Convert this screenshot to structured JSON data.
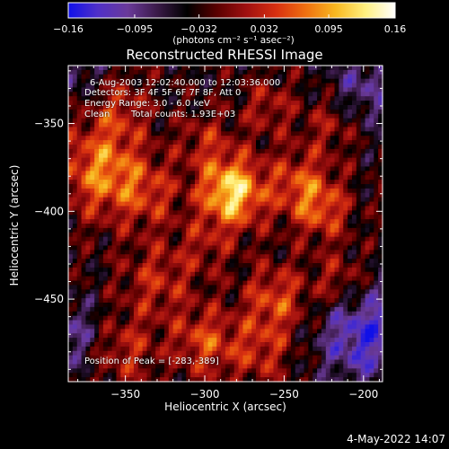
{
  "chart_data": {
    "type": "heatmap",
    "title": "Reconstructed RHESSI Image",
    "xlabel": "Heliocentric X (arcsec)",
    "ylabel": "Heliocentric Y (arcsec)",
    "xlim": [
      -386,
      -188
    ],
    "ylim": [
      -497,
      -317
    ],
    "xticks": [
      -350,
      -300,
      -250,
      -200
    ],
    "xtick_labels": [
      "−350",
      "−300",
      "−250",
      "−200"
    ],
    "yticks": [
      -350,
      -400,
      -450
    ],
    "ytick_labels": [
      "−350",
      "−400",
      "−450"
    ],
    "colorbar": {
      "range": [
        -0.16,
        0.16
      ],
      "ticks": [
        -0.16,
        -0.095,
        -0.032,
        0.032,
        0.095,
        0.16
      ],
      "tick_labels": [
        "−0.16",
        "−0.095",
        "−0.032",
        "0.032",
        "0.095",
        "0.16"
      ],
      "units_text": "(photons cm⁻² s⁻¹ asec⁻²)",
      "palette": [
        "#1010e8",
        "#5030c8",
        "#6a3a9a",
        "#3a1a48",
        "#000000",
        "#5a0000",
        "#a01010",
        "#d83010",
        "#f07010",
        "#f8b820",
        "#fff080",
        "#ffffff"
      ]
    },
    "annotations": {
      "time_range": "6-Aug-2003 12:02:40.000 to 12:03:36.000",
      "detectors": "Detectors: 3F 4F 5F 6F 7F 8F, Att 0",
      "energy": "Energy Range: 3.0 - 6.0 keV",
      "method": "Clean",
      "total_counts": "Total counts: 1.93E+03",
      "peak": "Position of Peak = [-283,-389]"
    },
    "peak_position": [
      -283,
      -389
    ],
    "sources": [
      {
        "x": -283,
        "y": -389,
        "amplitude": 0.16,
        "width": 14
      },
      {
        "x": -365,
        "y": -377,
        "amplitude": 0.11,
        "width": 18
      },
      {
        "x": -335,
        "y": -390,
        "amplitude": 0.06,
        "width": 14
      },
      {
        "x": -355,
        "y": -340,
        "amplitude": 0.06,
        "width": 14
      },
      {
        "x": -330,
        "y": -440,
        "amplitude": 0.06,
        "width": 16
      },
      {
        "x": -300,
        "y": -360,
        "amplitude": 0.05,
        "width": 12
      },
      {
        "x": -300,
        "y": -475,
        "amplitude": 0.08,
        "width": 14
      },
      {
        "x": -350,
        "y": -480,
        "amplitude": 0.06,
        "width": 14
      },
      {
        "x": -240,
        "y": -385,
        "amplitude": 0.08,
        "width": 14
      },
      {
        "x": -225,
        "y": -400,
        "amplitude": 0.07,
        "width": 12
      },
      {
        "x": -255,
        "y": -450,
        "amplitude": 0.08,
        "width": 14
      },
      {
        "x": -215,
        "y": -440,
        "amplitude": 0.06,
        "width": 12
      },
      {
        "x": -260,
        "y": -340,
        "amplitude": 0.05,
        "width": 12
      },
      {
        "x": -220,
        "y": -350,
        "amplitude": 0.05,
        "width": 12
      },
      {
        "x": -265,
        "y": -480,
        "amplitude": 0.06,
        "width": 14
      },
      {
        "x": -300,
        "y": -420,
        "amplitude": 0.04,
        "width": 12
      },
      {
        "x": -200,
        "y": -470,
        "amplitude": -0.1,
        "width": 20
      },
      {
        "x": -200,
        "y": -330,
        "amplitude": -0.06,
        "width": 16
      },
      {
        "x": -380,
        "y": -320,
        "amplitude": -0.05,
        "width": 14
      },
      {
        "x": -385,
        "y": -470,
        "amplitude": -0.06,
        "width": 14
      }
    ]
  },
  "timestamp": "4-May-2022 14:07"
}
